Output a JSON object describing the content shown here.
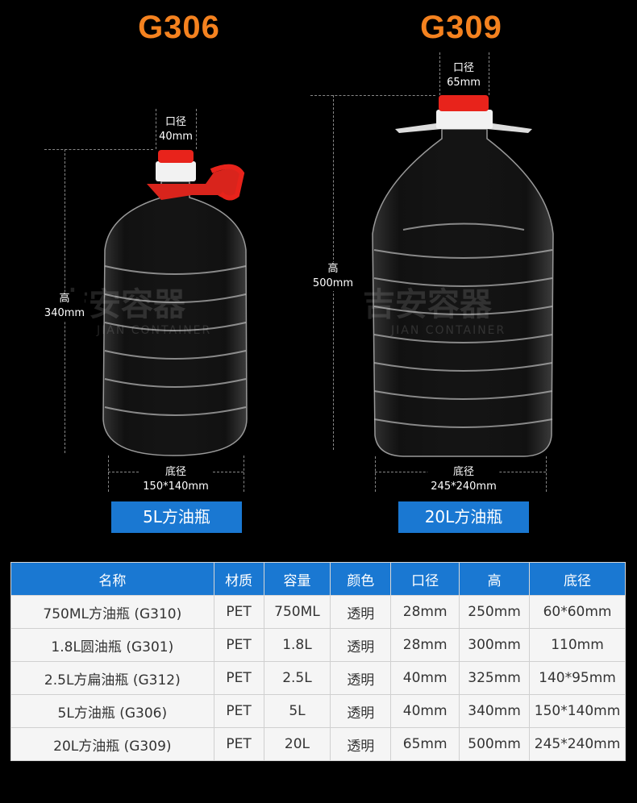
{
  "products": [
    {
      "model": "G306",
      "neck_label": "口径",
      "neck_value": "40mm",
      "height_label": "高",
      "height_value": "340mm",
      "base_label": "底径",
      "base_value": "150*140mm",
      "name_button": "5L方油瓶",
      "cap_color": "#e8231b"
    },
    {
      "model": "G309",
      "neck_label": "口径",
      "neck_value": "65mm",
      "height_label": "高",
      "height_value": "500mm",
      "base_label": "底径",
      "base_value": "245*240mm",
      "name_button": "20L方油瓶",
      "cap_color": "#e8231b"
    }
  ],
  "watermark": {
    "text": "吉安容器",
    "subtext": "JIAN CONTAINER"
  },
  "table": {
    "headers": [
      "名称",
      "材质",
      "容量",
      "颜色",
      "口径",
      "高",
      "底径"
    ],
    "rows": [
      [
        "750ML方油瓶 (G310)",
        "PET",
        "750ML",
        "透明",
        "28mm",
        "250mm",
        "60*60mm"
      ],
      [
        "1.8L圆油瓶 (G301)",
        "PET",
        "1.8L",
        "透明",
        "28mm",
        "300mm",
        "110mm"
      ],
      [
        "2.5L方扁油瓶 (G312)",
        "PET",
        "2.5L",
        "透明",
        "40mm",
        "325mm",
        "140*95mm"
      ],
      [
        "5L方油瓶 (G306)",
        "PET",
        "5L",
        "透明",
        "40mm",
        "340mm",
        "150*140mm"
      ],
      [
        "20L方油瓶 (G309)",
        "PET",
        "20L",
        "透明",
        "65mm",
        "500mm",
        "245*240mm"
      ]
    ]
  },
  "colors": {
    "accent_orange": "#f5821f",
    "header_blue": "#1a78d2"
  }
}
